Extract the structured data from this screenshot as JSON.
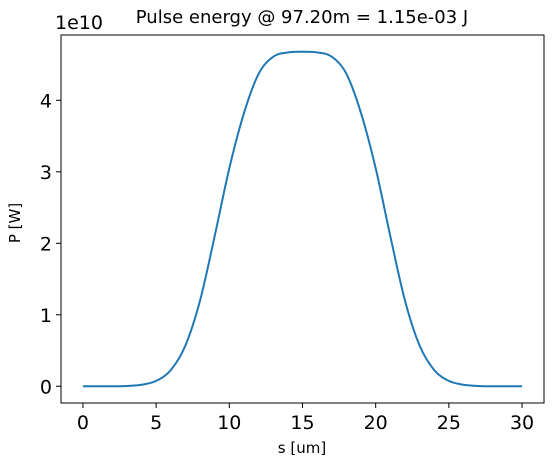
{
  "chart_data": {
    "type": "line",
    "title": "Pulse energy @ 97.20m = 1.15e-03 J",
    "xlabel": "s [um]",
    "ylabel": "P [W]",
    "y_offset_label": "1e10",
    "xlim": [
      -1.5,
      31.5
    ],
    "ylim": [
      -0.234,
      4.914
    ],
    "x_ticks": [
      0,
      5,
      10,
      15,
      20,
      25,
      30
    ],
    "x_tick_labels": [
      "0",
      "5",
      "10",
      "15",
      "20",
      "25",
      "30"
    ],
    "y_ticks": [
      0,
      1,
      2,
      3,
      4
    ],
    "y_tick_labels": [
      "0",
      "1",
      "2",
      "3",
      "4"
    ],
    "grid": false,
    "line_color": "#1f77b4",
    "series": [
      {
        "x": [
          0,
          1,
          2,
          3,
          4,
          5,
          6,
          7,
          8,
          9,
          10,
          11,
          12,
          13,
          14,
          15,
          16,
          17,
          18,
          19,
          20,
          21,
          22,
          23,
          24,
          25,
          26,
          27,
          28,
          29,
          30
        ],
        "values": [
          0.0,
          0.0001,
          0.0007,
          0.0042,
          0.021,
          0.0754,
          0.226,
          0.57,
          1.2,
          2.1,
          3.05,
          3.82,
          4.37,
          4.61,
          4.67,
          4.68,
          4.67,
          4.61,
          4.37,
          3.82,
          3.05,
          2.1,
          1.2,
          0.57,
          0.226,
          0.0754,
          0.021,
          0.0042,
          0.0007,
          0.0001,
          0.0
        ]
      }
    ]
  }
}
